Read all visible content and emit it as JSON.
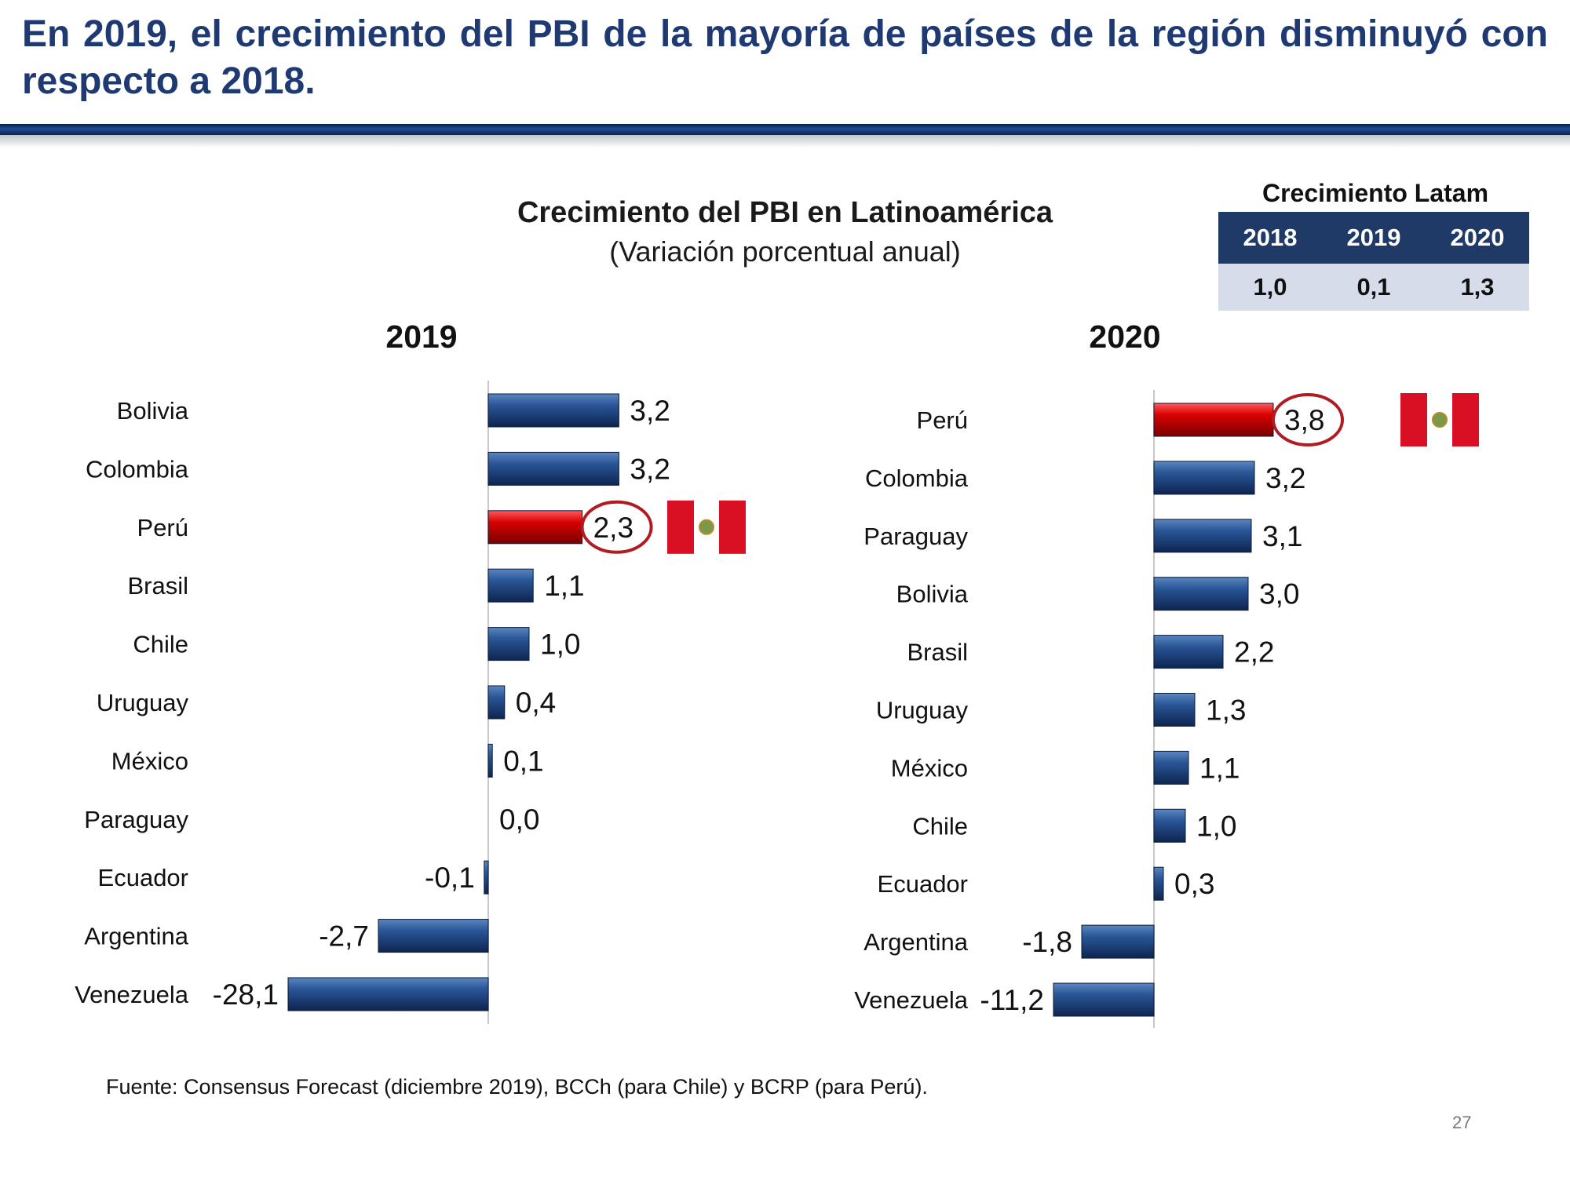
{
  "page": {
    "title": "En 2019, el crecimiento del PBI de la mayoría de países de la región disminuyó con respecto a 2018.",
    "source": "Fuente: Consensus Forecast (diciembre 2019), BCCh (para Chile) y BCRP (para Perú).",
    "page_number": "27"
  },
  "latam": {
    "title": "Crecimiento Latam",
    "headers": [
      "2018",
      "2019",
      "2020"
    ],
    "values": [
      "1,0",
      "0,1",
      "1,3"
    ],
    "header_color": "#1f3a67",
    "row_color": "#d6dcea"
  },
  "colors": {
    "bar_blue": "#1f4277",
    "bar_red": "#d40000",
    "highlight_circle": "#b01c24",
    "flag_red": "#d91023"
  },
  "chart_data": [
    {
      "type": "bar",
      "orientation": "horizontal",
      "title": "Crecimiento del PBI en Latinoamérica",
      "subtitle": "(Variación porcentual anual)",
      "panel_title": "2019",
      "unit": "%",
      "categories": [
        "Bolivia",
        "Colombia",
        "Perú",
        "Brasil",
        "Chile",
        "Uruguay",
        "México",
        "Paraguay",
        "Ecuador",
        "Argentina",
        "Venezuela"
      ],
      "values": [
        3.2,
        3.2,
        2.3,
        1.1,
        1.0,
        0.4,
        0.1,
        0.0,
        -0.1,
        -2.7,
        -28.1
      ],
      "labels": [
        "3,2",
        "3,2",
        "2,3",
        "1,1",
        "1,0",
        "0,4",
        "0,1",
        "0,0",
        "-0,1",
        "-2,7",
        "-28,1"
      ],
      "highlight": "Perú",
      "axis_break": true
    },
    {
      "type": "bar",
      "orientation": "horizontal",
      "panel_title": "2020",
      "unit": "%",
      "categories": [
        "Perú",
        "Colombia",
        "Paraguay",
        "Bolivia",
        "Brasil",
        "Uruguay",
        "México",
        "Chile",
        "Ecuador",
        "Argentina",
        "Venezuela"
      ],
      "values": [
        3.8,
        3.2,
        3.1,
        3.0,
        2.2,
        1.3,
        1.1,
        1.0,
        0.3,
        -1.8,
        -11.2
      ],
      "labels": [
        "3,8",
        "3,2",
        "3,1",
        "3,0",
        "2,2",
        "1,3",
        "1,1",
        "1,0",
        "0,3",
        "-1,8",
        "-11,2"
      ],
      "highlight": "Perú",
      "axis_break": true
    }
  ]
}
